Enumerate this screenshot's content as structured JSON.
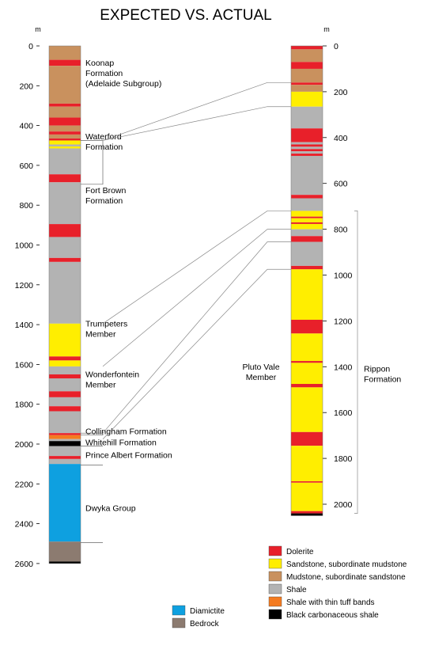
{
  "title": "EXPECTED VS. ACTUAL",
  "depth_unit": "m",
  "colors": {
    "dolerite": "#e8202a",
    "sandstone": "#ffee00",
    "mudstone": "#c9915e",
    "shale": "#b3b3b3",
    "tuff": "#f47b20",
    "black_shale": "#000000",
    "diamictite": "#0ea0e0",
    "bedrock": "#8c7b70"
  },
  "expected": {
    "ticks": [
      "0",
      "200",
      "400",
      "600",
      "800",
      "1000",
      "1200",
      "1400",
      "1600",
      "1800",
      "2000",
      "2200",
      "2400",
      "2600"
    ],
    "max_depth": 2600,
    "layers": [
      {
        "lith": "mudstone",
        "top": 0,
        "base": 70
      },
      {
        "lith": "dolerite",
        "top": 70,
        "base": 100
      },
      {
        "lith": "mudstone",
        "top": 100,
        "base": 290
      },
      {
        "lith": "dolerite",
        "top": 290,
        "base": 305
      },
      {
        "lith": "mudstone",
        "top": 305,
        "base": 360
      },
      {
        "lith": "dolerite",
        "top": 360,
        "base": 400
      },
      {
        "lith": "mudstone",
        "top": 400,
        "base": 430
      },
      {
        "lith": "dolerite",
        "top": 430,
        "base": 445
      },
      {
        "lith": "mudstone",
        "top": 445,
        "base": 465
      },
      {
        "lith": "dolerite",
        "top": 465,
        "base": 475
      },
      {
        "lith": "sandstone",
        "top": 475,
        "base": 495
      },
      {
        "lith": "shale",
        "top": 495,
        "base": 505
      },
      {
        "lith": "sandstone",
        "top": 505,
        "base": 515
      },
      {
        "lith": "shale",
        "top": 515,
        "base": 645
      },
      {
        "lith": "dolerite",
        "top": 645,
        "base": 685
      },
      {
        "lith": "shale",
        "top": 685,
        "base": 895
      },
      {
        "lith": "dolerite",
        "top": 895,
        "base": 960
      },
      {
        "lith": "shale",
        "top": 960,
        "base": 1065
      },
      {
        "lith": "dolerite",
        "top": 1065,
        "base": 1085
      },
      {
        "lith": "shale",
        "top": 1085,
        "base": 1395
      },
      {
        "lith": "sandstone",
        "top": 1395,
        "base": 1560
      },
      {
        "lith": "dolerite",
        "top": 1560,
        "base": 1580
      },
      {
        "lith": "sandstone",
        "top": 1580,
        "base": 1610
      },
      {
        "lith": "shale",
        "top": 1610,
        "base": 1650
      },
      {
        "lith": "dolerite",
        "top": 1650,
        "base": 1670
      },
      {
        "lith": "shale",
        "top": 1670,
        "base": 1735
      },
      {
        "lith": "dolerite",
        "top": 1735,
        "base": 1765
      },
      {
        "lith": "shale",
        "top": 1765,
        "base": 1810
      },
      {
        "lith": "dolerite",
        "top": 1810,
        "base": 1835
      },
      {
        "lith": "shale",
        "top": 1835,
        "base": 1945
      },
      {
        "lith": "dolerite",
        "top": 1945,
        "base": 1955
      },
      {
        "lith": "tuff",
        "top": 1955,
        "base": 1975
      },
      {
        "lith": "shale",
        "top": 1975,
        "base": 1985
      },
      {
        "lith": "black_shale",
        "top": 1985,
        "base": 2010
      },
      {
        "lith": "shale",
        "top": 2010,
        "base": 2060
      },
      {
        "lith": "dolerite",
        "top": 2060,
        "base": 2075
      },
      {
        "lith": "shale",
        "top": 2075,
        "base": 2100
      },
      {
        "lith": "diamictite",
        "top": 2100,
        "base": 2490
      },
      {
        "lith": "bedrock",
        "top": 2490,
        "base": 2590
      },
      {
        "lith": "black_shale",
        "top": 2590,
        "base": 2600
      }
    ],
    "labels": [
      {
        "lines": [
          "Koonap",
          "Formation",
          "(Adelaide Subgroup)"
        ],
        "depth": 100
      },
      {
        "lines": [
          "Waterford",
          "Formation"
        ],
        "depth": 470
      },
      {
        "lines": [
          "Fort Brown",
          "Formation"
        ],
        "depth": 740
      },
      {
        "lines": [
          "Trumpeters",
          "Member"
        ],
        "depth": 1410
      },
      {
        "lines": [
          "Wonderfontein",
          "Member"
        ],
        "depth": 1665
      },
      {
        "lines": [
          "Collingham Formation"
        ],
        "depth": 1950
      },
      {
        "lines": [
          "Whitehill Formation"
        ],
        "depth": 2005
      },
      {
        "lines": [
          "Prince Albert Formation"
        ],
        "depth": 2070
      },
      {
        "lines": [
          "Dwyka Group"
        ],
        "depth": 2335
      }
    ]
  },
  "actual": {
    "ticks": [
      "0",
      "200",
      "400",
      "600",
      "800",
      "1000",
      "1200",
      "1400",
      "1600",
      "1800",
      "2000"
    ],
    "max_depth": 2050,
    "layers": [
      {
        "lith": "dolerite",
        "top": 0,
        "base": 15
      },
      {
        "lith": "mudstone",
        "top": 15,
        "base": 70
      },
      {
        "lith": "dolerite",
        "top": 70,
        "base": 100
      },
      {
        "lith": "mudstone",
        "top": 100,
        "base": 160
      },
      {
        "lith": "dolerite",
        "top": 160,
        "base": 170
      },
      {
        "lith": "mudstone",
        "top": 170,
        "base": 200
      },
      {
        "lith": "sandstone",
        "top": 200,
        "base": 265
      },
      {
        "lith": "shale",
        "top": 265,
        "base": 360
      },
      {
        "lith": "dolerite",
        "top": 360,
        "base": 420
      },
      {
        "lith": "shale",
        "top": 420,
        "base": 430
      },
      {
        "lith": "dolerite",
        "top": 430,
        "base": 440
      },
      {
        "lith": "shale",
        "top": 440,
        "base": 450
      },
      {
        "lith": "dolerite",
        "top": 450,
        "base": 460
      },
      {
        "lith": "shale",
        "top": 460,
        "base": 470
      },
      {
        "lith": "dolerite",
        "top": 470,
        "base": 480
      },
      {
        "lith": "shale",
        "top": 480,
        "base": 650
      },
      {
        "lith": "dolerite",
        "top": 650,
        "base": 665
      },
      {
        "lith": "shale",
        "top": 665,
        "base": 720
      },
      {
        "lith": "sandstone",
        "top": 720,
        "base": 745
      },
      {
        "lith": "dolerite",
        "top": 745,
        "base": 752
      },
      {
        "lith": "sandstone",
        "top": 752,
        "base": 770
      },
      {
        "lith": "dolerite",
        "top": 770,
        "base": 777
      },
      {
        "lith": "sandstone",
        "top": 777,
        "base": 800
      },
      {
        "lith": "shale",
        "top": 800,
        "base": 830
      },
      {
        "lith": "dolerite",
        "top": 830,
        "base": 855
      },
      {
        "lith": "shale",
        "top": 855,
        "base": 960
      },
      {
        "lith": "dolerite",
        "top": 960,
        "base": 975
      },
      {
        "lith": "sandstone",
        "top": 975,
        "base": 1195
      },
      {
        "lith": "dolerite",
        "top": 1195,
        "base": 1255
      },
      {
        "lith": "sandstone",
        "top": 1255,
        "base": 1375
      },
      {
        "lith": "dolerite",
        "top": 1375,
        "base": 1383
      },
      {
        "lith": "sandstone",
        "top": 1383,
        "base": 1475
      },
      {
        "lith": "dolerite",
        "top": 1475,
        "base": 1490
      },
      {
        "lith": "sandstone",
        "top": 1490,
        "base": 1685
      },
      {
        "lith": "dolerite",
        "top": 1685,
        "base": 1745
      },
      {
        "lith": "sandstone",
        "top": 1745,
        "base": 1900
      },
      {
        "lith": "dolerite",
        "top": 1900,
        "base": 1906
      },
      {
        "lith": "sandstone",
        "top": 1906,
        "base": 2030
      },
      {
        "lith": "dolerite",
        "top": 2030,
        "base": 2040
      },
      {
        "lith": "black_shale",
        "top": 2040,
        "base": 2050
      }
    ],
    "member_label": {
      "lines": [
        "Pluto Vale",
        "Member"
      ],
      "depth": 1475
    },
    "bracket_label": {
      "lines": [
        "Rippon",
        "Formation"
      ],
      "depth": 1470
    },
    "bracket_range": [
      720,
      2040
    ]
  },
  "correlations": [
    {
      "from": 475,
      "to": 160
    },
    {
      "from": 475,
      "to": 265
    },
    {
      "from": 1395,
      "to": 720
    },
    {
      "from": 1610,
      "to": 800
    },
    {
      "from": 1945,
      "to": 855
    },
    {
      "from": 1975,
      "to": 975
    }
  ],
  "brackets_expected": [
    {
      "top": 475,
      "base": 695
    },
    {
      "top": 1945,
      "base": 1955
    },
    {
      "top": 2010,
      "base": 2010
    },
    {
      "top": 2105,
      "base": 2105
    },
    {
      "top": 2495,
      "base": 2495
    }
  ],
  "legend": [
    {
      "lith": "dolerite",
      "label": "Dolerite"
    },
    {
      "lith": "sandstone",
      "label": "Sandstone, subordinate mudstone"
    },
    {
      "lith": "mudstone",
      "label": "Mudstone, subordinate sandstone"
    },
    {
      "lith": "shale",
      "label": "Shale"
    },
    {
      "lith": "tuff",
      "label": "Shale with thin tuff bands"
    },
    {
      "lith": "black_shale",
      "label": "Black carbonaceous shale"
    },
    {
      "lith": "diamictite",
      "label": "Diamictite"
    },
    {
      "lith": "bedrock",
      "label": "Bedrock"
    }
  ]
}
